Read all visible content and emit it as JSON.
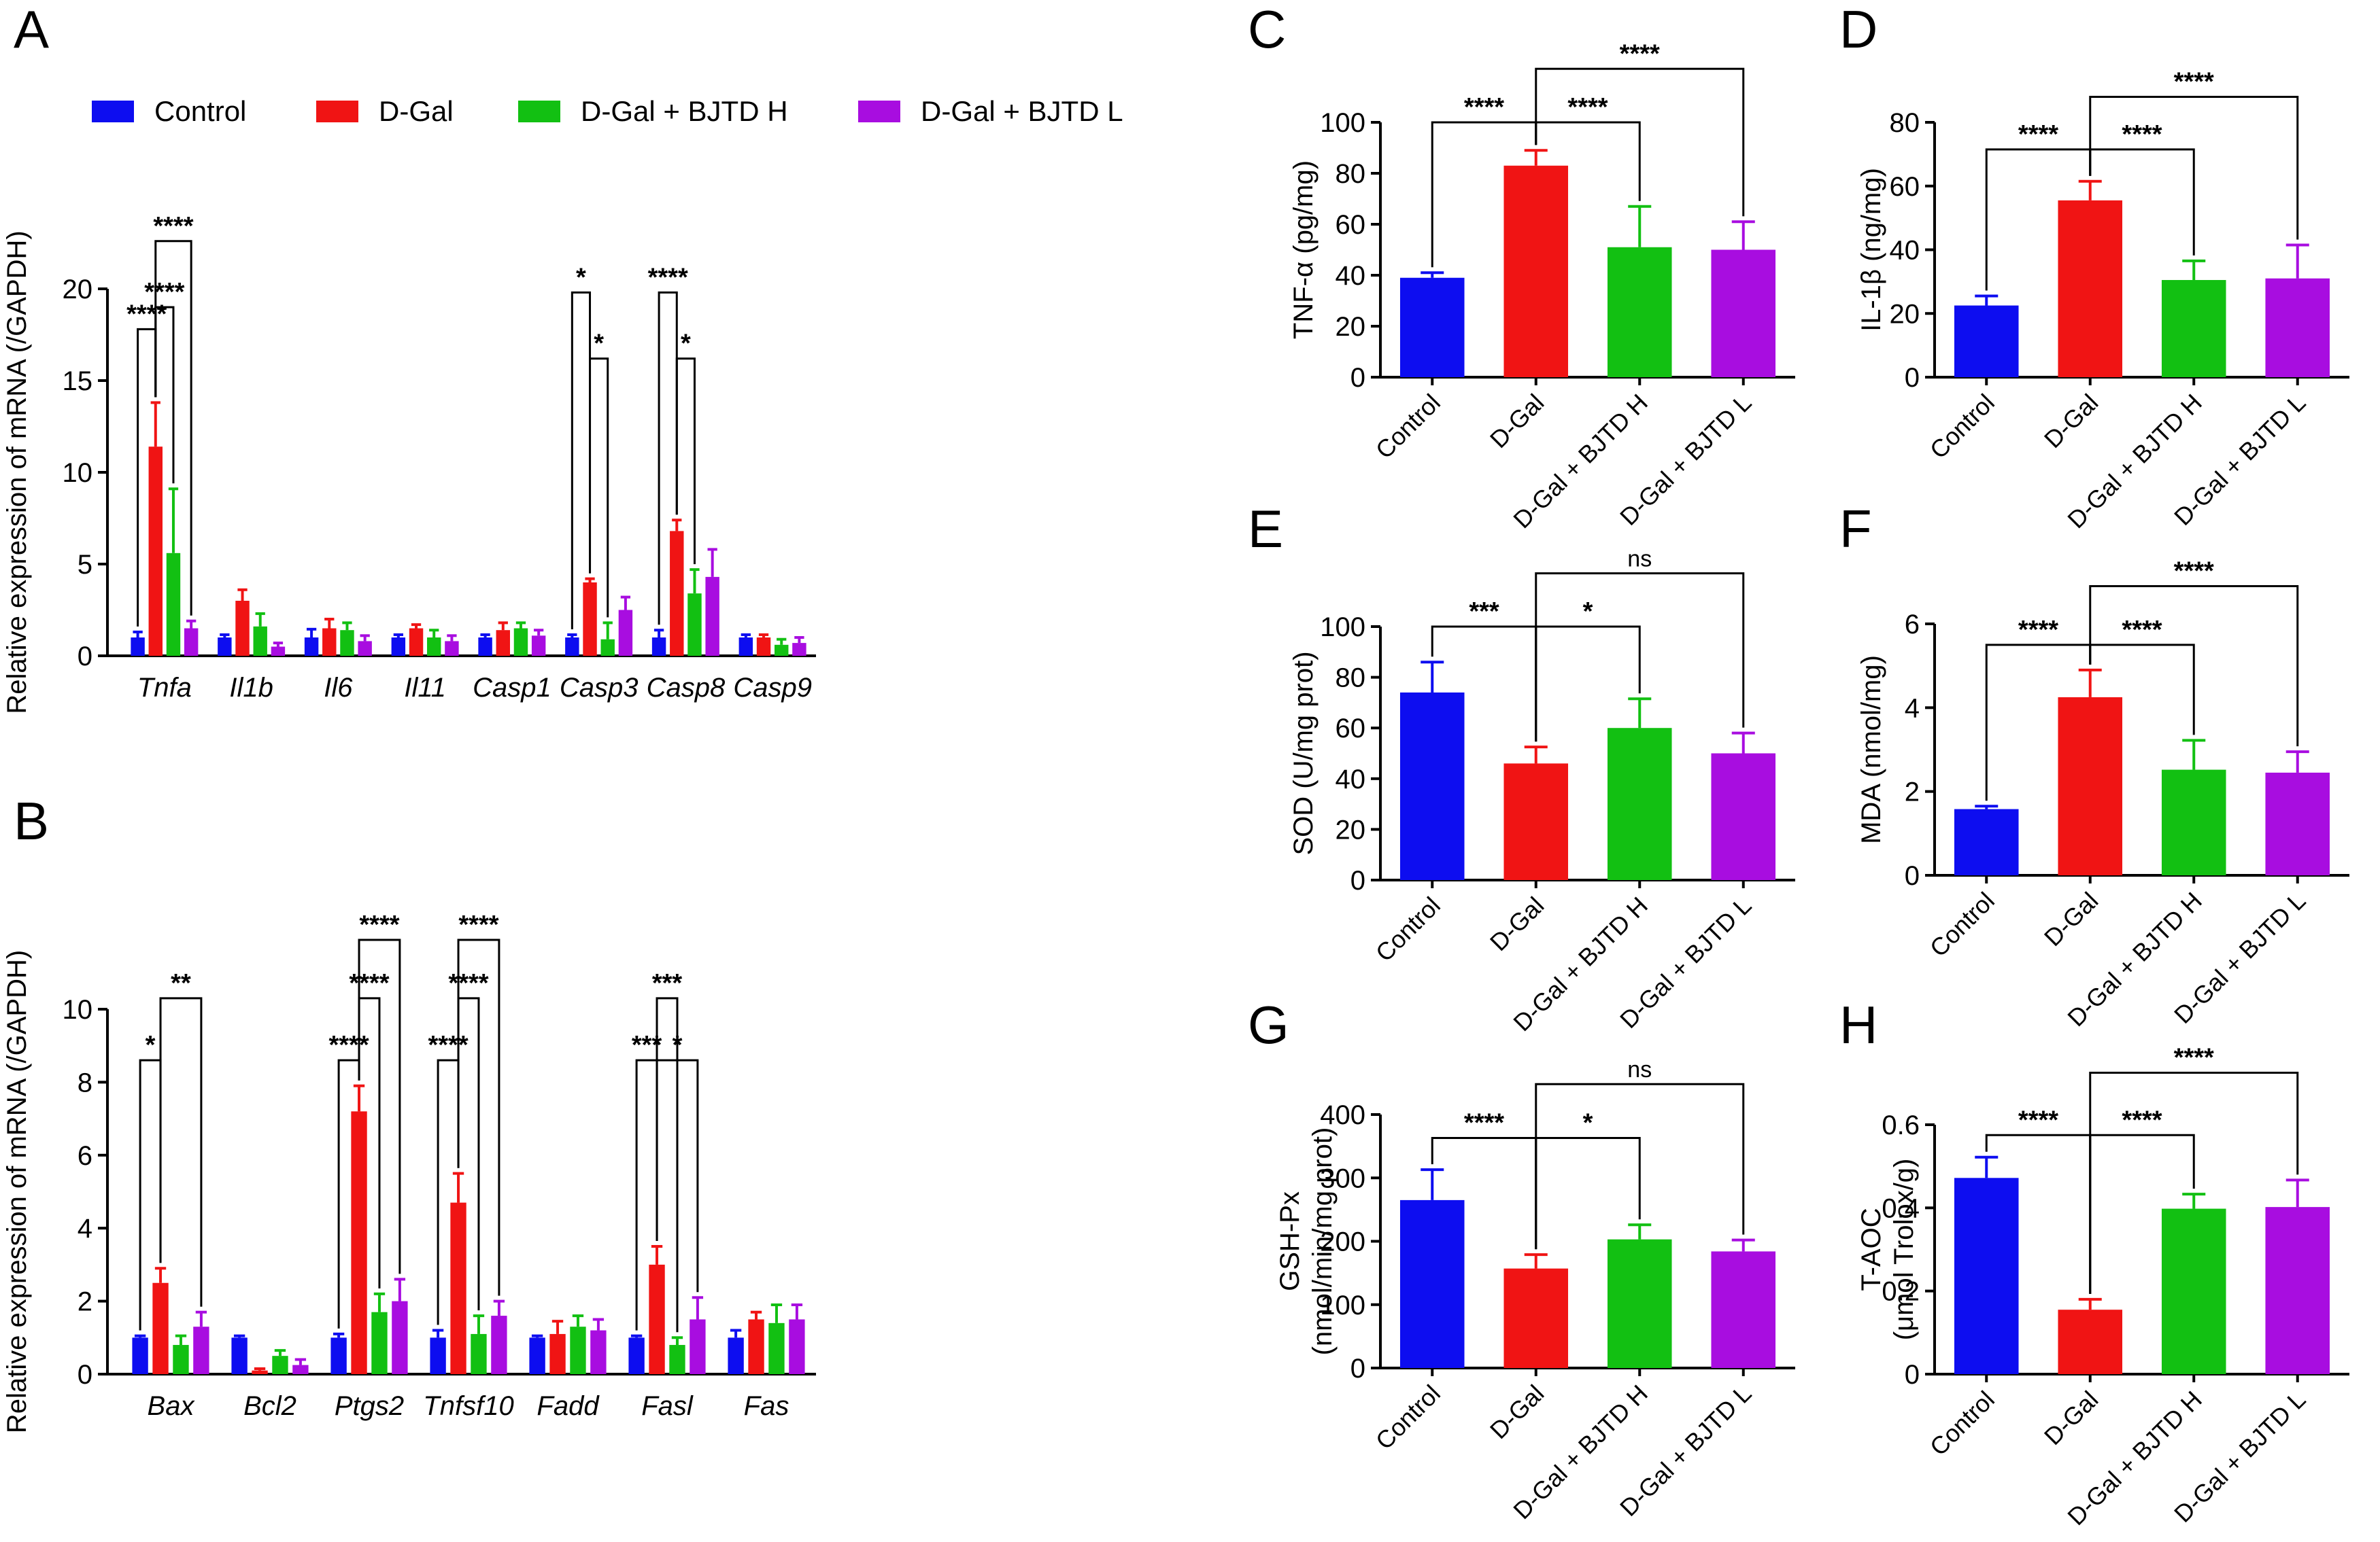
{
  "colors": {
    "Control": "#0d0df0",
    "D-Gal": "#f01414",
    "D-Gal + BJTD H": "#12c012",
    "D-Gal + BJTD L": "#a80de0"
  },
  "legend": [
    "Control",
    "D-Gal",
    "D-Gal + BJTD H",
    "D-Gal + BJTD L"
  ],
  "chart_data": [
    {
      "panel": "A",
      "type": "bar",
      "ylabel": "Relative expression of mRNA (/GAPDH)",
      "ylim": [
        0,
        20
      ],
      "yticks": [
        0,
        5,
        10,
        15,
        20
      ],
      "categories": [
        "Tnfa",
        "Il1b",
        "Il6",
        "Il11",
        "Casp1",
        "Casp3",
        "Casp8",
        "Casp9"
      ],
      "series": [
        {
          "name": "Control",
          "values": [
            1.0,
            1.0,
            1.0,
            1.0,
            1.0,
            1.0,
            1.0,
            1.0
          ],
          "errors": [
            0.3,
            0.15,
            0.45,
            0.15,
            0.15,
            0.15,
            0.4,
            0.15
          ]
        },
        {
          "name": "D-Gal",
          "values": [
            11.4,
            3.0,
            1.5,
            1.5,
            1.4,
            4.0,
            6.8,
            1.0
          ],
          "errors": [
            2.4,
            0.6,
            0.5,
            0.2,
            0.4,
            0.2,
            0.6,
            0.15
          ]
        },
        {
          "name": "D-Gal + BJTD H",
          "values": [
            5.6,
            1.6,
            1.4,
            1.0,
            1.5,
            0.9,
            3.4,
            0.6
          ],
          "errors": [
            3.5,
            0.7,
            0.4,
            0.4,
            0.3,
            0.9,
            1.3,
            0.3
          ]
        },
        {
          "name": "D-Gal + BJTD L",
          "values": [
            1.5,
            0.5,
            0.8,
            0.8,
            1.1,
            2.5,
            4.3,
            0.7
          ],
          "errors": [
            0.4,
            0.2,
            0.3,
            0.3,
            0.3,
            0.7,
            1.5,
            0.3
          ]
        }
      ],
      "significance": [
        {
          "category": "Tnfa",
          "from": 0,
          "to": 1,
          "label": "****",
          "y": 17.8
        },
        {
          "category": "Tnfa",
          "from": 1,
          "to": 2,
          "label": "****",
          "y": 19.0
        },
        {
          "category": "Tnfa",
          "from": 1,
          "to": 3,
          "label": "****",
          "y": 22.6
        },
        {
          "category": "Casp3",
          "from": 0,
          "to": 1,
          "label": "*",
          "y": 19.8
        },
        {
          "category": "Casp3",
          "from": 1,
          "to": 2,
          "label": "*",
          "y": 16.2
        },
        {
          "category": "Casp8",
          "from": 0,
          "to": 1,
          "label": "****",
          "y": 19.8
        },
        {
          "category": "Casp8",
          "from": 1,
          "to": 2,
          "label": "*",
          "y": 16.2
        }
      ]
    },
    {
      "panel": "B",
      "type": "bar",
      "ylabel": "Relative expression of mRNA (/GAPDH)",
      "ylim": [
        0,
        10
      ],
      "yticks": [
        0,
        2,
        4,
        6,
        8,
        10
      ],
      "categories": [
        "Bax",
        "Bcl2",
        "Ptgs2",
        "Tnfsf10",
        "Fadd",
        "Fasl",
        "Fas"
      ],
      "series": [
        {
          "name": "Control",
          "values": [
            1.0,
            1.0,
            1.0,
            1.0,
            1.0,
            1.0,
            1.0
          ],
          "errors": [
            0.05,
            0.05,
            0.1,
            0.2,
            0.05,
            0.05,
            0.2
          ]
        },
        {
          "name": "D-Gal",
          "values": [
            2.5,
            0.1,
            7.2,
            4.7,
            1.1,
            3.0,
            1.5
          ],
          "errors": [
            0.4,
            0.05,
            0.7,
            0.8,
            0.35,
            0.5,
            0.2
          ]
        },
        {
          "name": "D-Gal + BJTD H",
          "values": [
            0.8,
            0.5,
            1.7,
            1.1,
            1.3,
            0.8,
            1.4
          ],
          "errors": [
            0.25,
            0.15,
            0.5,
            0.5,
            0.3,
            0.2,
            0.5
          ]
        },
        {
          "name": "D-Gal + BJTD L",
          "values": [
            1.3,
            0.25,
            2.0,
            1.6,
            1.2,
            1.5,
            1.5
          ],
          "errors": [
            0.4,
            0.15,
            0.6,
            0.4,
            0.3,
            0.6,
            0.4
          ]
        }
      ],
      "significance": [
        {
          "category": "Bax",
          "from": 0,
          "to": 1,
          "label": "*",
          "y": 8.6
        },
        {
          "category": "Bax",
          "from": 1,
          "to": 3,
          "label": "**",
          "y": 10.3
        },
        {
          "category": "Ptgs2",
          "from": 0,
          "to": 1,
          "label": "****",
          "y": 8.6
        },
        {
          "category": "Ptgs2",
          "from": 1,
          "to": 2,
          "label": "****",
          "y": 10.3
        },
        {
          "category": "Ptgs2",
          "from": 1,
          "to": 3,
          "label": "****",
          "y": 11.9
        },
        {
          "category": "Tnfsf10",
          "from": 0,
          "to": 1,
          "label": "****",
          "y": 8.6
        },
        {
          "category": "Tnfsf10",
          "from": 1,
          "to": 2,
          "label": "****",
          "y": 10.3
        },
        {
          "category": "Tnfsf10",
          "from": 1,
          "to": 3,
          "label": "****",
          "y": 11.9
        },
        {
          "category": "Fasl",
          "from": 0,
          "to": 1,
          "label": "***",
          "y": 8.6
        },
        {
          "category": "Fasl",
          "from": 1,
          "to": 2,
          "label": "***",
          "y": 10.3
        },
        {
          "category": "Fasl",
          "from": 1,
          "to": 3,
          "label": "*",
          "y": 8.6
        }
      ]
    },
    {
      "panel": "C",
      "type": "bar",
      "ylabel": "TNF-α (pg/mg)",
      "ylim": [
        0,
        100
      ],
      "yticks": [
        0,
        20,
        40,
        60,
        80,
        100
      ],
      "categories": [
        "Control",
        "D-Gal",
        "D-Gal + BJTD H",
        "D-Gal + BJTD L"
      ],
      "values": [
        39,
        83,
        51,
        50
      ],
      "errors": [
        2,
        6,
        16,
        11
      ],
      "significance": [
        {
          "from": 0,
          "to": 1,
          "label": "****",
          "y": 100
        },
        {
          "from": 1,
          "to": 2,
          "label": "****",
          "y": 100
        },
        {
          "from": 1,
          "to": 3,
          "label": "****",
          "y": 121
        }
      ]
    },
    {
      "panel": "D",
      "type": "bar",
      "ylabel": "IL-1β (ng/mg)",
      "ylim": [
        0,
        80
      ],
      "yticks": [
        0,
        20,
        40,
        60,
        80
      ],
      "categories": [
        "Control",
        "D-Gal",
        "D-Gal + BJTD H",
        "D-Gal + BJTD L"
      ],
      "values": [
        22.5,
        55.5,
        30.5,
        31
      ],
      "errors": [
        3,
        6,
        6,
        10.5
      ],
      "significance": [
        {
          "from": 0,
          "to": 1,
          "label": "****",
          "y": 71.5
        },
        {
          "from": 1,
          "to": 2,
          "label": "****",
          "y": 71.5
        },
        {
          "from": 1,
          "to": 3,
          "label": "****",
          "y": 88
        }
      ]
    },
    {
      "panel": "E",
      "type": "bar",
      "ylabel": "SOD (U/mg prot)",
      "ylim": [
        0,
        100
      ],
      "yticks": [
        0,
        20,
        40,
        60,
        80,
        100
      ],
      "categories": [
        "Control",
        "D-Gal",
        "D-Gal + BJTD H",
        "D-Gal + BJTD L"
      ],
      "values": [
        74,
        46,
        60,
        50
      ],
      "errors": [
        12,
        6.5,
        11.5,
        8
      ],
      "significance": [
        {
          "from": 0,
          "to": 1,
          "label": "***",
          "y": 100
        },
        {
          "from": 1,
          "to": 2,
          "label": "*",
          "y": 100
        },
        {
          "from": 1,
          "to": 3,
          "label": "ns",
          "y": 121
        }
      ]
    },
    {
      "panel": "F",
      "type": "bar",
      "ylabel": "MDA (nmol/mg)",
      "ylim": [
        0,
        6
      ],
      "yticks": [
        0,
        2,
        4,
        6
      ],
      "categories": [
        "Control",
        "D-Gal",
        "D-Gal + BJTD H",
        "D-Gal + BJTD L"
      ],
      "values": [
        1.58,
        4.25,
        2.52,
        2.45
      ],
      "errors": [
        0.07,
        0.65,
        0.7,
        0.5
      ],
      "significance": [
        {
          "from": 0,
          "to": 1,
          "label": "****",
          "y": 5.5
        },
        {
          "from": 1,
          "to": 2,
          "label": "****",
          "y": 5.5
        },
        {
          "from": 1,
          "to": 3,
          "label": "****",
          "y": 6.9
        }
      ]
    },
    {
      "panel": "G",
      "type": "bar",
      "ylabel": "GSH-Px (nmol/min/mg prot)",
      "ylim": [
        0,
        400
      ],
      "yticks": [
        0,
        100,
        200,
        300,
        400
      ],
      "categories": [
        "Control",
        "D-Gal",
        "D-Gal + BJTD H",
        "D-Gal + BJTD L"
      ],
      "values": [
        265,
        157,
        203,
        184
      ],
      "errors": [
        48,
        22,
        23,
        18
      ],
      "significance": [
        {
          "from": 0,
          "to": 1,
          "label": "****",
          "y": 363
        },
        {
          "from": 1,
          "to": 2,
          "label": "*",
          "y": 363
        },
        {
          "from": 1,
          "to": 3,
          "label": "ns",
          "y": 448
        }
      ]
    },
    {
      "panel": "H",
      "type": "bar",
      "ylabel": "T-AOC (μmol Trolox/g)",
      "ylim": [
        0,
        0.6
      ],
      "yticks": [
        0,
        0.2,
        0.4,
        0.6
      ],
      "categories": [
        "Control",
        "D-Gal",
        "D-Gal + BJTD H",
        "D-Gal + BJTD L"
      ],
      "values": [
        0.472,
        0.155,
        0.398,
        0.402
      ],
      "errors": [
        0.05,
        0.025,
        0.035,
        0.065
      ],
      "significance": [
        {
          "from": 0,
          "to": 1,
          "label": "****",
          "y": 0.575
        },
        {
          "from": 1,
          "to": 2,
          "label": "****",
          "y": 0.575
        },
        {
          "from": 1,
          "to": 3,
          "label": "****",
          "y": 0.725
        }
      ]
    }
  ]
}
